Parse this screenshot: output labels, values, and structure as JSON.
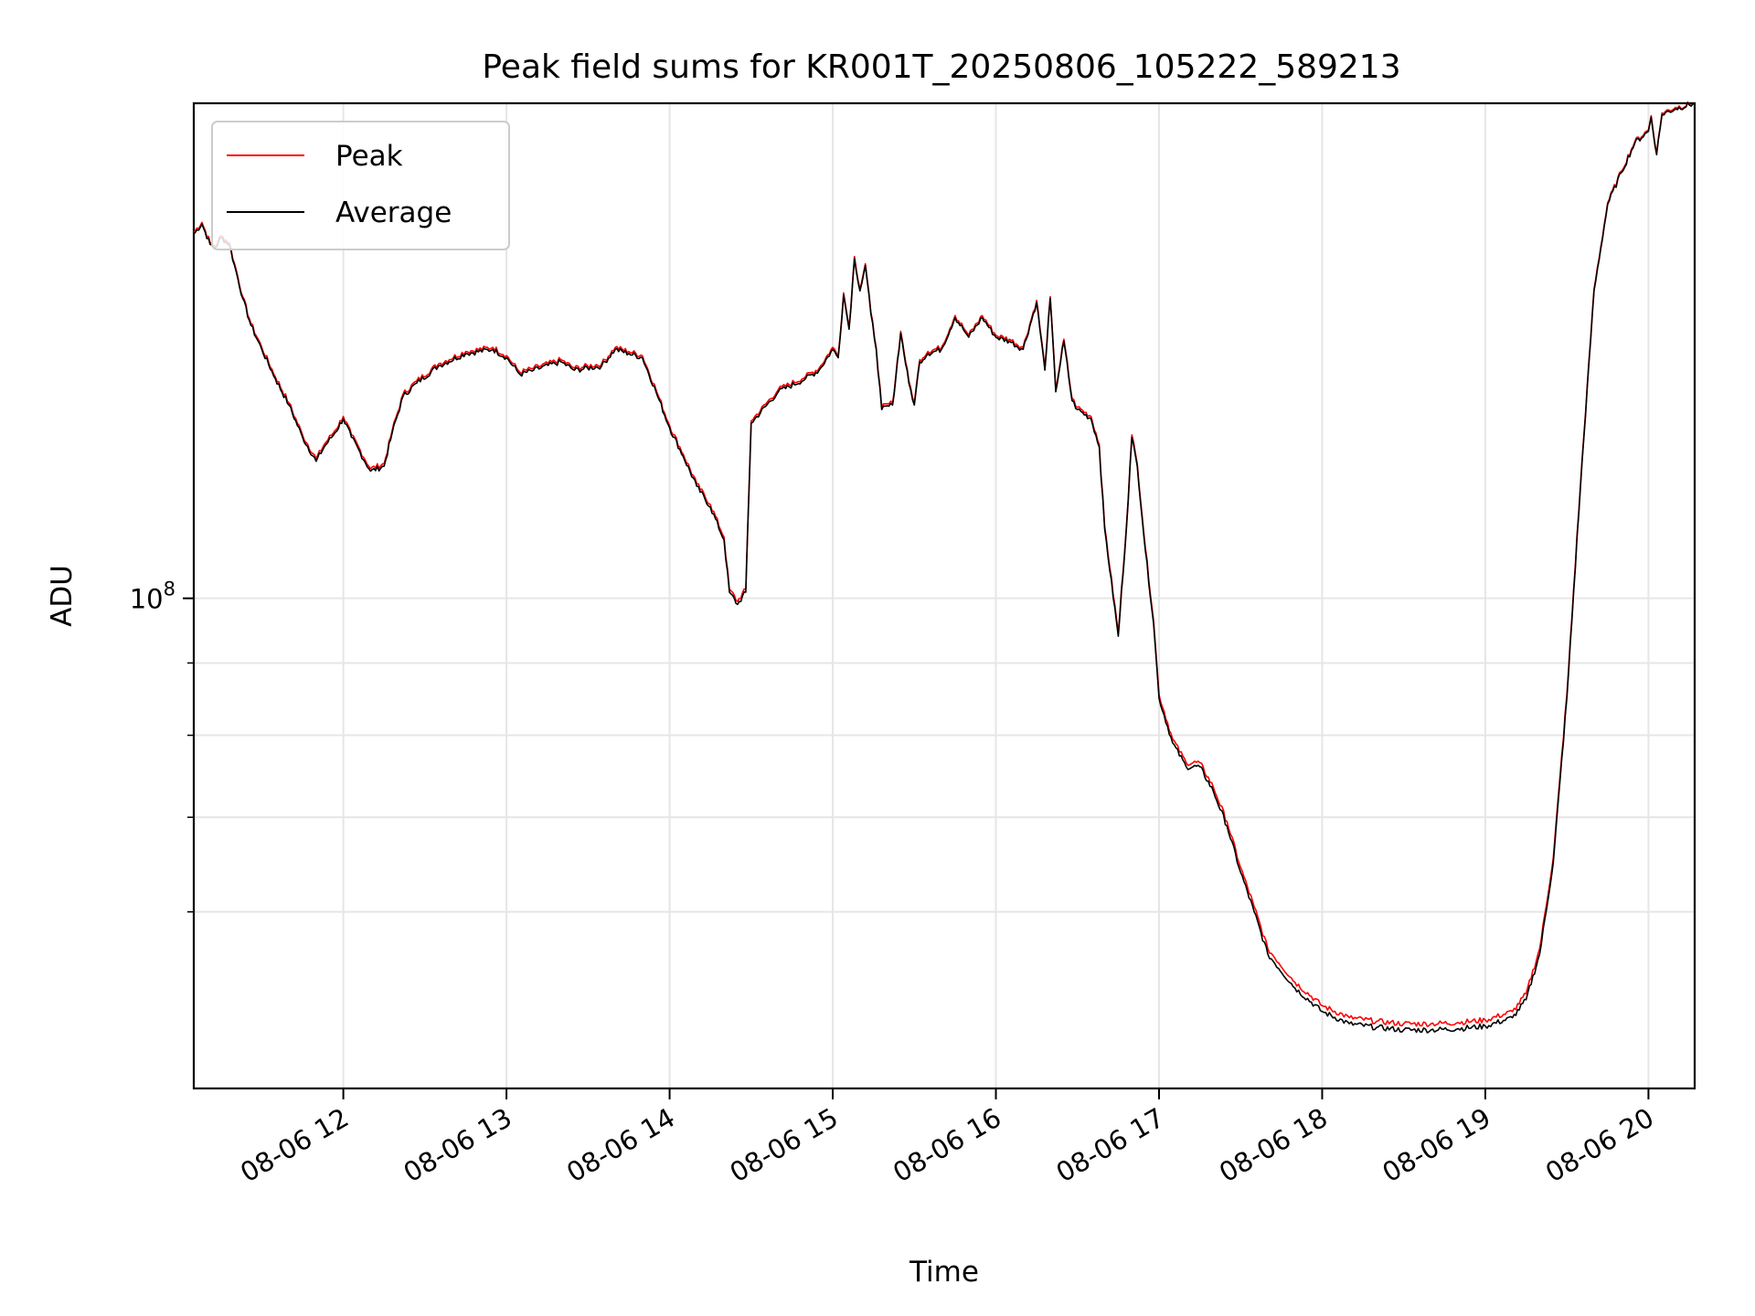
{
  "chart_data": {
    "type": "line",
    "title": "Peak field sums for KR001T_20250806_105222_589213",
    "xlabel": "Time",
    "ylabel": "ADU",
    "y_scale": "log",
    "x_range": [
      "2025-08-06 11:05",
      "2025-08-06 20:17"
    ],
    "y_range": [
      45000000,
      224000000
    ],
    "x_ticks": [
      {
        "value": "2025-08-06 12:00",
        "label": "08-06 12"
      },
      {
        "value": "2025-08-06 13:00",
        "label": "08-06 13"
      },
      {
        "value": "2025-08-06 14:00",
        "label": "08-06 14"
      },
      {
        "value": "2025-08-06 15:00",
        "label": "08-06 15"
      },
      {
        "value": "2025-08-06 16:00",
        "label": "08-06 16"
      },
      {
        "value": "2025-08-06 17:00",
        "label": "08-06 17"
      },
      {
        "value": "2025-08-06 18:00",
        "label": "08-06 18"
      },
      {
        "value": "2025-08-06 19:00",
        "label": "08-06 19"
      },
      {
        "value": "2025-08-06 20:00",
        "label": "08-06 20"
      }
    ],
    "y_major_ticks": [
      {
        "value": 100000000,
        "base": "10",
        "exponent": "8"
      }
    ],
    "y_minor_ticks": [
      60000000,
      70000000,
      80000000,
      90000000
    ],
    "grid": true,
    "legend_position": "top-left",
    "series": [
      {
        "name": "Peak",
        "color": "#ff0000"
      },
      {
        "name": "Average",
        "color": "#000000"
      }
    ],
    "x": [
      "11:05",
      "11:08",
      "11:11",
      "11:13",
      "11:15",
      "11:18",
      "11:20",
      "11:23",
      "11:26",
      "11:30",
      "11:35",
      "11:40",
      "11:45",
      "11:50",
      "11:53",
      "11:57",
      "12:00",
      "12:03",
      "12:10",
      "12:15",
      "12:18",
      "12:22",
      "12:27",
      "12:35",
      "12:45",
      "12:55",
      "13:00",
      "13:05",
      "13:10",
      "13:20",
      "13:25",
      "13:35",
      "13:40",
      "13:45",
      "13:50",
      "13:55",
      "14:00",
      "14:05",
      "14:10",
      "14:15",
      "14:20",
      "14:22",
      "14:25",
      "14:28",
      "14:30",
      "14:40",
      "14:50",
      "14:55",
      "15:00",
      "15:02",
      "15:04",
      "15:06",
      "15:08",
      "15:10",
      "15:12",
      "15:14",
      "15:16",
      "15:18",
      "15:22",
      "15:25",
      "15:28",
      "15:30",
      "15:32",
      "15:35",
      "15:40",
      "15:45",
      "15:48",
      "15:50",
      "15:55",
      "16:00",
      "16:05",
      "16:10",
      "16:15",
      "16:18",
      "16:20",
      "16:22",
      "16:25",
      "16:28",
      "16:30",
      "16:35",
      "16:38",
      "16:40",
      "16:45",
      "16:48",
      "16:50",
      "16:52",
      "16:55",
      "16:58",
      "17:00",
      "17:05",
      "17:10",
      "17:15",
      "17:20",
      "17:25",
      "17:30",
      "17:35",
      "17:40",
      "17:50",
      "18:00",
      "18:10",
      "18:20",
      "18:30",
      "18:40",
      "18:50",
      "19:00",
      "19:10",
      "19:15",
      "19:20",
      "19:25",
      "19:30",
      "19:35",
      "19:40",
      "19:45",
      "19:50",
      "19:55",
      "20:00",
      "20:01",
      "20:03",
      "20:05",
      "20:10",
      "20:17"
    ],
    "average": [
      181,
      184,
      178,
      177,
      180,
      178,
      172,
      163,
      156,
      150,
      143,
      137,
      130,
      125,
      128,
      131,
      134,
      130,
      123,
      124,
      131,
      139,
      142,
      146,
      149,
      150,
      148,
      144,
      145,
      147,
      145,
      146,
      150,
      149,
      148,
      140,
      132,
      126,
      120,
      116,
      110,
      101,
      99,
      101,
      133,
      140,
      143,
      145,
      150,
      148,
      164,
      155,
      174,
      165,
      172,
      159,
      150,
      136,
      137,
      154,
      142,
      137,
      147,
      149,
      150,
      158,
      155,
      153,
      158,
      153,
      152,
      150,
      162,
      145,
      163,
      140,
      152,
      138,
      136,
      134,
      128,
      112,
      94,
      112,
      130,
      124,
      108,
      96,
      85,
      79,
      76,
      76,
      73,
      69,
      64,
      60,
      56,
      53,
      51,
      50,
      49.7,
      49.5,
      49.5,
      49.6,
      49.8,
      50.5,
      52,
      56,
      65,
      85,
      120,
      165,
      190,
      200,
      210,
      214,
      219,
      206,
      220,
      222,
      224
    ],
    "peak": [
      181.5,
      184.5,
      178.5,
      177.5,
      180.5,
      178.5,
      172.5,
      163.5,
      156.5,
      150.5,
      143.5,
      137.5,
      130.5,
      125.5,
      128.5,
      131.5,
      134.5,
      130.5,
      123.5,
      124.5,
      131.5,
      139.5,
      142.5,
      146.5,
      149.5,
      150.5,
      148.5,
      144.5,
      145.5,
      147.5,
      145.5,
      146.5,
      150.5,
      149.5,
      148.5,
      140.5,
      132.5,
      126.5,
      120.5,
      116.5,
      110.5,
      101.5,
      99.5,
      101.5,
      133.5,
      140.5,
      143.5,
      145.5,
      150.5,
      148.5,
      164.5,
      155.5,
      174.5,
      165.5,
      172.5,
      159.5,
      150.5,
      136.5,
      137.5,
      154.5,
      142.5,
      137.5,
      147.5,
      149.5,
      150.5,
      158.5,
      155.5,
      153.5,
      158.5,
      153.5,
      152.5,
      150.5,
      162.5,
      145.5,
      163.5,
      140.5,
      152.5,
      138.5,
      136.5,
      134.5,
      128.5,
      112.5,
      94.5,
      112.5,
      130.5,
      124.5,
      108.5,
      96.5,
      85.5,
      79.5,
      76.5,
      76.5,
      73.5,
      69.5,
      64.5,
      60.5,
      56.5,
      53.5,
      51.5,
      50.5,
      50.2,
      50,
      50,
      50.1,
      50.3,
      51,
      52.5,
      56.5,
      65.5,
      85.5,
      120.5,
      165.5,
      190.5,
      200.5,
      210.5,
      214.5,
      219.5,
      206.5,
      220.5,
      222.5,
      224
    ],
    "y_units_note_removed": true
  }
}
